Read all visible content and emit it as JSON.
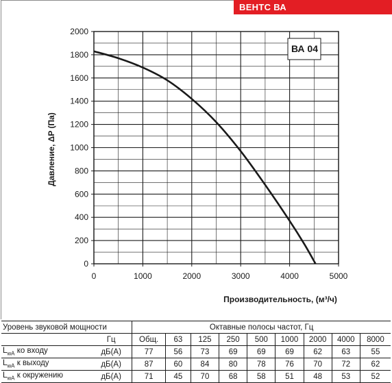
{
  "brand": {
    "title": "ВЕНТС ВА",
    "color": "#e31e24"
  },
  "chart_data": {
    "type": "line",
    "model_label": "ВА 04",
    "xlabel": "Производительность, (м³/ч)",
    "ylabel": "Давление, ΔP (Па)",
    "xlim": [
      0,
      5000
    ],
    "ylim": [
      0,
      2000
    ],
    "x_ticks": [
      "0",
      "1000",
      "2000",
      "3000",
      "4000",
      "5000"
    ],
    "y_ticks": [
      "0",
      "200",
      "400",
      "600",
      "800",
      "1000",
      "1200",
      "1400",
      "1600",
      "1800",
      "2000"
    ],
    "grid": true,
    "series": [
      {
        "x": [
          0,
          500,
          1000,
          1500,
          2000,
          2500,
          3000,
          3500,
          4000,
          4300,
          4530
        ],
        "y": [
          1830,
          1770,
          1690,
          1580,
          1420,
          1220,
          970,
          680,
          370,
          170,
          0
        ]
      }
    ]
  },
  "noise_table": {
    "title": "Уровень звуковой мощности",
    "bands_title": "Октавные полосы частот, Гц",
    "hz_label": "Гц",
    "columns": [
      "Общ.",
      "63",
      "125",
      "250",
      "500",
      "1000",
      "2000",
      "4000",
      "8000"
    ],
    "rows": [
      {
        "label_main": "L",
        "label_sub": "wA",
        "label_rest": " ко входу",
        "unit": "дБ(А)",
        "values": [
          "77",
          "56",
          "73",
          "69",
          "69",
          "69",
          "62",
          "63",
          "55"
        ]
      },
      {
        "label_main": "L",
        "label_sub": "wA",
        "label_rest": " к выходу",
        "unit": "дБ(А)",
        "values": [
          "87",
          "60",
          "84",
          "80",
          "78",
          "76",
          "70",
          "72",
          "62"
        ]
      },
      {
        "label_main": "L",
        "label_sub": "wA",
        "label_rest": " к окружению",
        "unit": "дБ(А)",
        "values": [
          "71",
          "45",
          "70",
          "68",
          "58",
          "51",
          "48",
          "53",
          "52"
        ]
      }
    ]
  }
}
